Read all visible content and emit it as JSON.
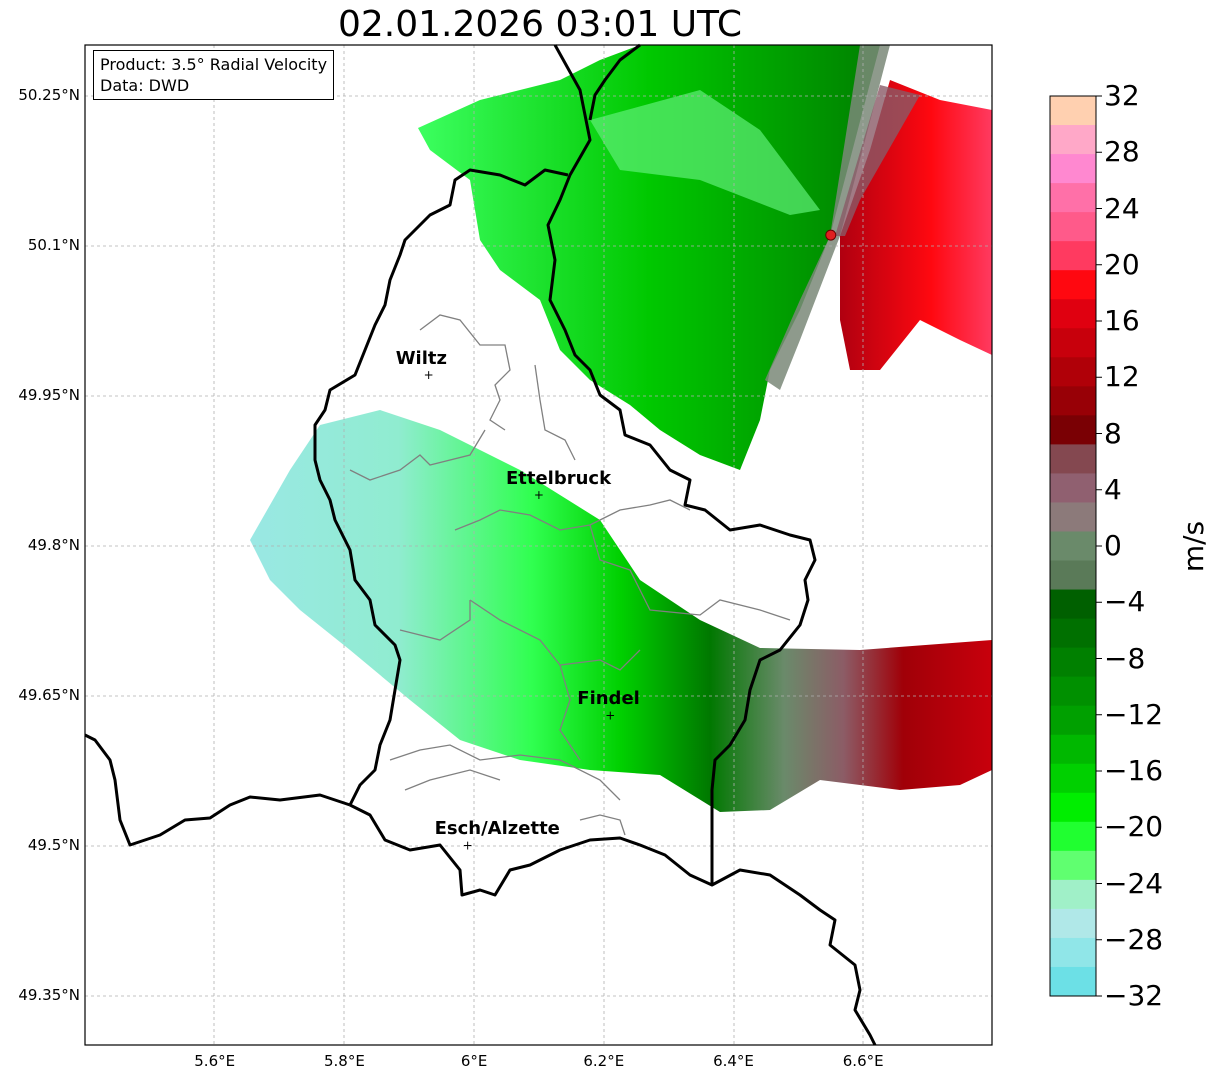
{
  "title": "02.01.2026 03:01 UTC",
  "info": {
    "product": "Product: 3.5° Radial Velocity",
    "source": "Data: DWD"
  },
  "axes": {
    "lat_ticks": [
      "50.25°N",
      "50.1°N",
      "49.95°N",
      "49.8°N",
      "49.65°N",
      "49.5°N",
      "49.35°N"
    ],
    "lon_ticks": [
      "5.6°E",
      "5.8°E",
      "6°E",
      "6.2°E",
      "6.4°E",
      "6.6°E"
    ]
  },
  "cities": [
    {
      "name": "Wiltz",
      "lon": 5.93,
      "lat": 49.97
    },
    {
      "name": "Ettelbruck",
      "lon": 6.1,
      "lat": 49.85
    },
    {
      "name": "Findel",
      "lon": 6.21,
      "lat": 49.63
    },
    {
      "name": "Esch/Alzette",
      "lon": 5.99,
      "lat": 49.5
    }
  ],
  "radar_site": {
    "lon": 6.55,
    "lat": 50.11
  },
  "colorbar": {
    "label": "m/s",
    "ticks": [
      "32",
      "28",
      "24",
      "20",
      "16",
      "12",
      "8",
      "4",
      "0",
      "−4",
      "−8",
      "−12",
      "−16",
      "−20",
      "−24",
      "−28",
      "−32"
    ],
    "colors": [
      "#ffd0b0",
      "#ffa8c8",
      "#ff88d0",
      "#ff70a8",
      "#ff5a8a",
      "#ff3a60",
      "#ff0810",
      "#e00010",
      "#c8000c",
      "#b00008",
      "#980006",
      "#7a0004",
      "#844850",
      "#906070",
      "#8c7a7a",
      "#6a8a6a",
      "#5a7a58",
      "#006000",
      "#007000",
      "#008000",
      "#009000",
      "#00a000",
      "#00b800",
      "#00d000",
      "#00ee00",
      "#20ff30",
      "#60ff70",
      "#a0f0c8",
      "#b0e8e8",
      "#90e6e8",
      "#6ce0e6"
    ]
  }
}
